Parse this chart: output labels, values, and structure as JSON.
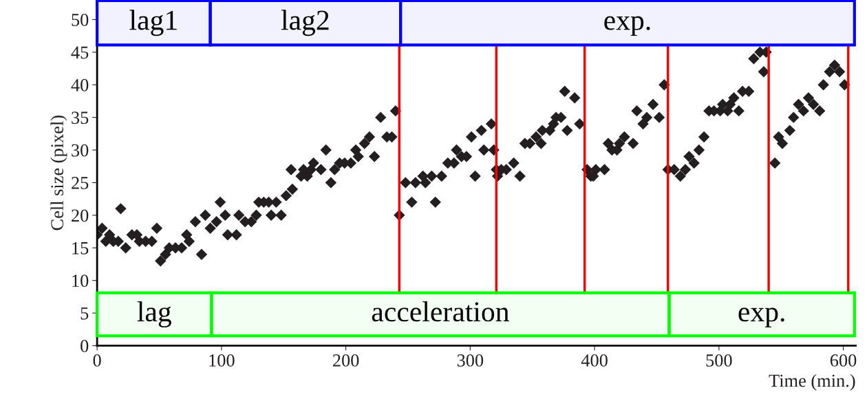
{
  "chart_data": {
    "type": "scatter",
    "xlabel": "Time (min.)",
    "ylabel": "Cell size (pixel)",
    "xlim": [
      0,
      610
    ],
    "ylim": [
      0,
      53
    ],
    "xticks": [
      0,
      100,
      200,
      300,
      400,
      500,
      600
    ],
    "yticks": [
      0,
      5,
      10,
      15,
      20,
      25,
      30,
      35,
      40,
      45,
      50
    ],
    "marker": "diamond",
    "grid": false,
    "series": [
      {
        "color": "#231f20",
        "x": [
          0,
          4,
          7,
          10,
          13,
          17,
          19,
          23,
          28,
          32,
          34,
          39,
          44,
          48,
          51,
          55,
          58,
          63,
          68,
          72,
          74,
          79,
          84,
          87,
          91,
          96,
          99,
          103,
          105,
          112,
          114,
          119,
          124,
          128,
          130,
          134,
          138,
          140,
          144,
          148,
          152,
          157,
          156,
          164,
          166,
          169,
          172,
          174,
          180,
          184,
          188,
          191,
          195,
          199,
          204,
          208,
          210,
          215,
          219,
          223,
          228,
          233,
          237,
          240,
          243,
          248,
          253,
          256,
          262,
          264,
          269,
          272,
          277,
          282,
          287,
          289,
          293,
          297,
          301,
          304,
          309,
          311,
          317,
          319,
          321,
          322,
          325,
          329,
          335,
          340,
          344,
          348,
          353,
          357,
          358,
          364,
          367,
          369,
          373,
          376,
          378,
          384,
          388,
          394,
          397,
          399,
          401,
          408,
          411,
          414,
          418,
          420,
          424,
          431,
          434,
          439,
          442,
          447,
          452,
          456,
          459,
          464,
          469,
          473,
          476,
          480,
          484,
          488,
          492,
          496,
          501,
          503,
          507,
          509,
          512,
          516,
          519,
          524,
          528,
          533,
          536,
          538,
          545,
          548,
          551,
          557,
          560,
          564,
          568,
          572,
          576,
          581,
          584,
          589,
          593,
          597,
          601
        ],
        "values": [
          17,
          18,
          16,
          17,
          16,
          16,
          21,
          15,
          17,
          17,
          16,
          16,
          16,
          18,
          13,
          14,
          15,
          15,
          15,
          17,
          16,
          19,
          14,
          20,
          18,
          19,
          22,
          20,
          17,
          17,
          20,
          19,
          19,
          20,
          22,
          22,
          22,
          20,
          22,
          20,
          23,
          24,
          27,
          26,
          27,
          26,
          27,
          28,
          27,
          30,
          25,
          27,
          28,
          28,
          28,
          30,
          29,
          31,
          32,
          29,
          35,
          32,
          32,
          36,
          20,
          25,
          22,
          25,
          26,
          25,
          26,
          22,
          26,
          28,
          28,
          30,
          29,
          29,
          32,
          26,
          33,
          30,
          34,
          30,
          27,
          26,
          27,
          27,
          28,
          26,
          31,
          31,
          32,
          31,
          33,
          33,
          34,
          35,
          35,
          39,
          33,
          38,
          34,
          27,
          26,
          26,
          27,
          27,
          31,
          30,
          30,
          31,
          32,
          31,
          36,
          34,
          35,
          37,
          35,
          40,
          27,
          27,
          26,
          27,
          29,
          28,
          30,
          32,
          36,
          36,
          36,
          37,
          36,
          37,
          38,
          36,
          39,
          39,
          44,
          45,
          42,
          45,
          28,
          32,
          31,
          33,
          35,
          37,
          36,
          38,
          37,
          36,
          40,
          42,
          43,
          42,
          40
        ]
      }
    ],
    "ref_lines": [
      {
        "axis": "x",
        "value": 243,
        "color": "#ff0000"
      },
      {
        "axis": "x",
        "value": 321,
        "color": "#ff0000"
      },
      {
        "axis": "x",
        "value": 392,
        "color": "#ff0000"
      },
      {
        "axis": "x",
        "value": 459,
        "color": "#ff0000"
      },
      {
        "axis": "x",
        "value": 540,
        "color": "#ff0000"
      },
      {
        "axis": "x",
        "value": 604,
        "color": "#ff0000"
      }
    ],
    "bands": [
      {
        "axis": "x",
        "from": 0,
        "to": 91,
        "label": "lag1",
        "color": "#0000ff"
      },
      {
        "axis": "x",
        "from": 91,
        "to": 244,
        "label": "lag2",
        "color": "#0000ff"
      },
      {
        "axis": "x",
        "from": 244,
        "to": 609,
        "label": "exp.",
        "color": "#0000ff"
      },
      {
        "axis": "x",
        "from": 0,
        "to": 92,
        "label": "lag",
        "color": "#00ff00"
      },
      {
        "axis": "x",
        "from": 92,
        "to": 460,
        "label": "acceleration",
        "color": "#00ff00"
      },
      {
        "axis": "x",
        "from": 460,
        "to": 609,
        "label": "exp.",
        "color": "#00ff00"
      }
    ]
  }
}
